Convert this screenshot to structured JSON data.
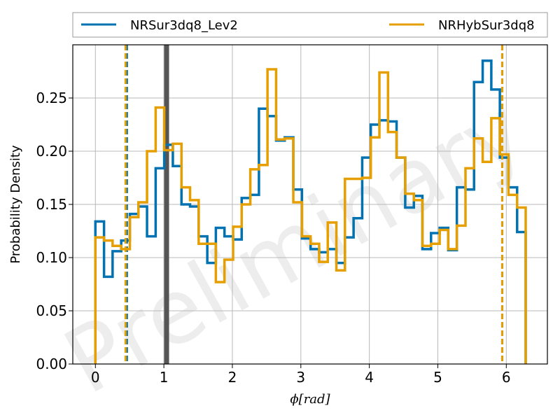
{
  "chart_data": {
    "type": "histogram",
    "title": "",
    "xlabel": "ϕ[rad]",
    "ylabel": "Probability Density",
    "xlim": [
      -0.33,
      6.6
    ],
    "ylim": [
      0.0,
      0.3
    ],
    "grid": true,
    "legend_position": "top",
    "legend_columns": 2,
    "watermark_text": "Preliminary",
    "x_ticks": [
      0,
      1,
      2,
      3,
      4,
      5,
      6
    ],
    "y_ticks": [
      0.0,
      0.05,
      0.1,
      0.15,
      0.2,
      0.25
    ],
    "x_tick_labels": [
      "0",
      "1",
      "2",
      "3",
      "4",
      "5",
      "6"
    ],
    "y_tick_labels": [
      "0.00",
      "0.05",
      "0.10",
      "0.15",
      "0.20",
      "0.25"
    ],
    "series": [
      {
        "name": "NRSur3dq8_Lev2",
        "color": "#0072b2",
        "bin_edges": [
          0.0,
          0.126,
          0.251,
          0.377,
          0.503,
          0.628,
          0.754,
          0.88,
          1.005,
          1.131,
          1.257,
          1.382,
          1.508,
          1.634,
          1.759,
          1.885,
          2.011,
          2.136,
          2.262,
          2.388,
          2.513,
          2.639,
          2.765,
          2.89,
          3.016,
          3.142,
          3.267,
          3.393,
          3.519,
          3.644,
          3.77,
          3.896,
          4.021,
          4.147,
          4.273,
          4.398,
          4.524,
          4.65,
          4.775,
          4.901,
          5.027,
          5.152,
          5.278,
          5.404,
          5.529,
          5.655,
          5.781,
          5.906,
          6.032,
          6.158,
          6.283
        ],
        "densities": [
          0.134,
          0.082,
          0.106,
          0.116,
          0.141,
          0.148,
          0.12,
          0.184,
          0.206,
          0.186,
          0.15,
          0.148,
          0.12,
          0.095,
          0.128,
          0.12,
          0.117,
          0.156,
          0.159,
          0.24,
          0.233,
          0.21,
          0.213,
          0.164,
          0.118,
          0.108,
          0.105,
          0.108,
          0.095,
          0.119,
          0.137,
          0.194,
          0.225,
          0.229,
          0.228,
          0.194,
          0.147,
          0.158,
          0.108,
          0.123,
          0.128,
          0.107,
          0.166,
          0.164,
          0.265,
          0.285,
          0.258,
          0.194,
          0.166,
          0.124
        ],
        "lower_quantile": 0.46,
        "upper_quantile": 5.94
      },
      {
        "name": "NRHybSur3dq8",
        "color": "#e69f00",
        "bin_edges": [
          0.0,
          0.126,
          0.251,
          0.377,
          0.503,
          0.628,
          0.754,
          0.88,
          1.005,
          1.131,
          1.257,
          1.382,
          1.508,
          1.634,
          1.759,
          1.885,
          2.011,
          2.136,
          2.262,
          2.388,
          2.513,
          2.639,
          2.765,
          2.89,
          3.016,
          3.142,
          3.267,
          3.393,
          3.519,
          3.644,
          3.77,
          3.896,
          4.021,
          4.147,
          4.273,
          4.398,
          4.524,
          4.65,
          4.775,
          4.901,
          5.027,
          5.152,
          5.278,
          5.404,
          5.529,
          5.655,
          5.781,
          5.906,
          6.032,
          6.158,
          6.283
        ],
        "densities": [
          0.119,
          0.116,
          0.111,
          0.108,
          0.138,
          0.152,
          0.2,
          0.241,
          0.201,
          0.207,
          0.166,
          0.154,
          0.113,
          0.113,
          0.077,
          0.098,
          0.129,
          0.15,
          0.183,
          0.187,
          0.277,
          0.211,
          0.212,
          0.152,
          0.12,
          0.113,
          0.096,
          0.133,
          0.088,
          0.174,
          0.174,
          0.175,
          0.213,
          0.274,
          0.218,
          0.194,
          0.16,
          0.154,
          0.111,
          0.113,
          0.126,
          0.108,
          0.13,
          0.184,
          0.212,
          0.19,
          0.231,
          0.197,
          0.159,
          0.147
        ],
        "lower_quantile": 0.44,
        "upper_quantile": 5.94
      }
    ],
    "reference_line": {
      "x": 1.04,
      "color": "#555555"
    }
  }
}
